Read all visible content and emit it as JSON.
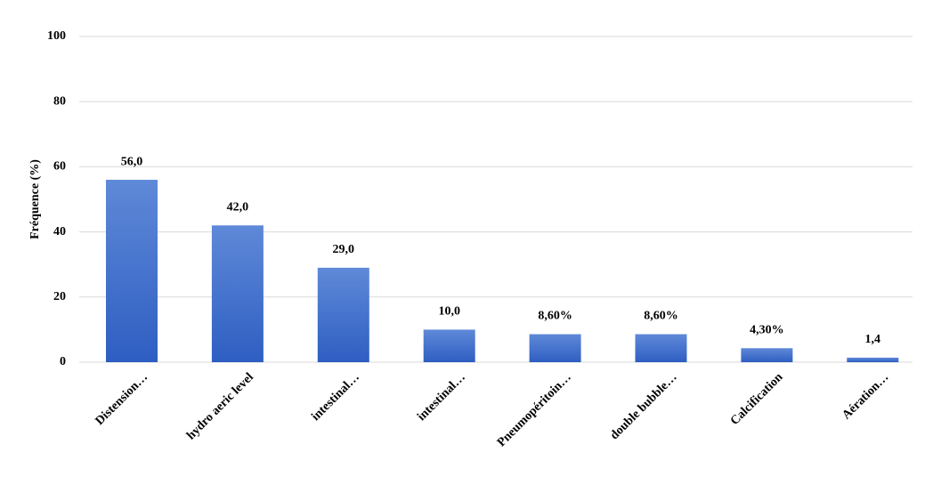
{
  "chart_data": {
    "type": "bar",
    "y_label": "Fréquence (%)",
    "categories": [
      "Distension…",
      "hydro aeric level",
      "intestinal…",
      "intestinal…",
      "Pneumopéritoin…",
      "double bubble…",
      "Calcification",
      "Aération…"
    ],
    "values": [
      56,
      42,
      29,
      10,
      8.6,
      8.6,
      4.3,
      1.4
    ],
    "value_labels": [
      "56,0",
      "42,0",
      "29,0",
      "10,0",
      "8,60%",
      "8,60%",
      "4,30%",
      "1,4"
    ],
    "color": "#4472c4",
    "ylim": [
      0,
      100
    ],
    "yticks": [
      0,
      20,
      40,
      60,
      80,
      100
    ],
    "grid": true
  }
}
